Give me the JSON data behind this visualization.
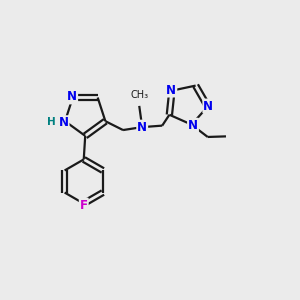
{
  "bg_color": "#ebebeb",
  "bond_color": "#1a1a1a",
  "N_color": "#0000ee",
  "H_color": "#008080",
  "F_color": "#cc00cc",
  "line_width": 1.6,
  "font_size": 8.5,
  "figsize": [
    3.0,
    3.0
  ],
  "dpi": 100,
  "xlim": [
    0,
    10
  ],
  "ylim": [
    0,
    10
  ]
}
